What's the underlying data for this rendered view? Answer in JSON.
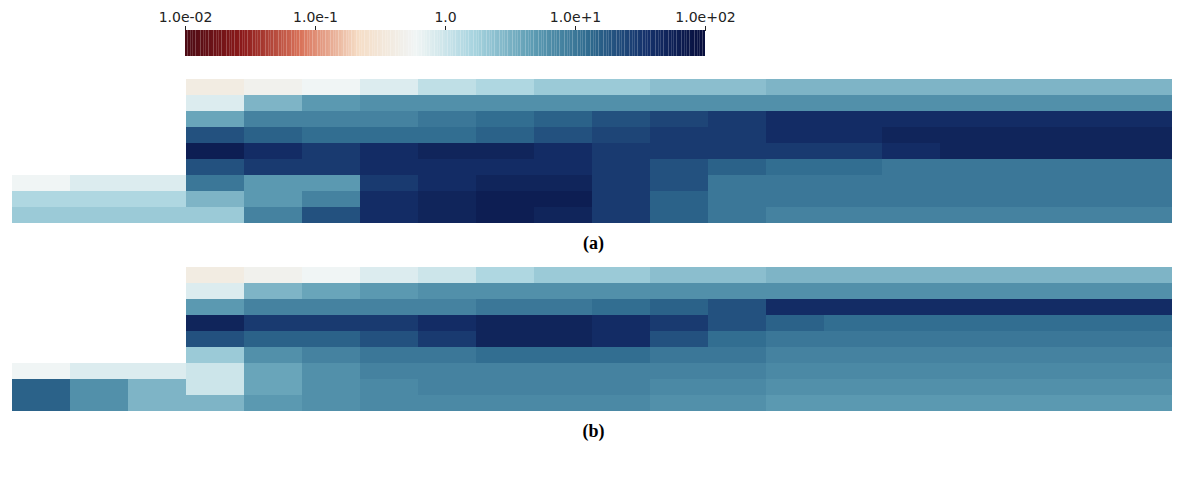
{
  "chart_data": {
    "type": "heatmap",
    "log": true,
    "colorbar": {
      "range": [
        0.01,
        100
      ],
      "ticks": [
        {
          "value": 0.01,
          "label": "1.0e-02"
        },
        {
          "value": 0.1,
          "label": "1.0e-1"
        },
        {
          "value": 1,
          "label": "1.0"
        },
        {
          "value": 10,
          "label": "1.0e+1"
        },
        {
          "value": 100,
          "label": "1.0e+02"
        }
      ]
    },
    "panels": [
      {
        "label": "(a)",
        "cells": [
          [
            null,
            null,
            null,
            0.4,
            0.5,
            0.6,
            0.8,
            1.2,
            1.5,
            2,
            2,
            2.5,
            2.5,
            3,
            3,
            3,
            3,
            3,
            3,
            3
          ],
          [
            null,
            null,
            null,
            0.8,
            3,
            5,
            6,
            6,
            6,
            6,
            6,
            6,
            6,
            6,
            6,
            6,
            6,
            6,
            6,
            6
          ],
          [
            null,
            null,
            null,
            4,
            8,
            8,
            8,
            10,
            12,
            15,
            20,
            25,
            30,
            40,
            40,
            40,
            40,
            40,
            40,
            40
          ],
          [
            null,
            null,
            null,
            20,
            15,
            12,
            12,
            12,
            15,
            20,
            25,
            30,
            30,
            40,
            40,
            50,
            50,
            50,
            50,
            50
          ],
          [
            null,
            null,
            null,
            60,
            40,
            30,
            40,
            50,
            50,
            40,
            30,
            30,
            30,
            30,
            30,
            40,
            50,
            50,
            50,
            50
          ],
          [
            null,
            null,
            null,
            20,
            30,
            30,
            40,
            40,
            40,
            40,
            30,
            20,
            15,
            12,
            12,
            10,
            10,
            10,
            10,
            10
          ],
          [
            0.6,
            0.8,
            0.8,
            10,
            5,
            5,
            30,
            40,
            50,
            50,
            30,
            20,
            10,
            10,
            10,
            10,
            10,
            10,
            10,
            10
          ],
          [
            1.5,
            1.5,
            1.5,
            3,
            5,
            8,
            40,
            50,
            60,
            60,
            30,
            15,
            10,
            10,
            10,
            10,
            10,
            10,
            10,
            10
          ],
          [
            2,
            2,
            2,
            2,
            8,
            20,
            40,
            50,
            60,
            50,
            30,
            15,
            10,
            8,
            8,
            8,
            8,
            8,
            8,
            8
          ]
        ]
      },
      {
        "label": "(b)",
        "cells": [
          [
            null,
            null,
            null,
            0.4,
            0.5,
            0.6,
            0.8,
            1,
            1.5,
            2,
            2,
            2.5,
            2.5,
            3,
            3,
            3,
            3,
            3,
            3,
            3
          ],
          [
            null,
            null,
            null,
            0.8,
            3,
            4,
            5,
            6,
            6,
            6,
            6,
            6,
            6,
            6,
            6,
            6,
            6,
            6,
            6,
            6
          ],
          [
            null,
            null,
            null,
            5,
            8,
            8,
            8,
            8,
            10,
            10,
            12,
            15,
            20,
            40,
            40,
            40,
            40,
            40,
            40,
            40
          ],
          [
            null,
            null,
            null,
            50,
            30,
            30,
            30,
            40,
            50,
            50,
            40,
            30,
            20,
            15,
            12,
            12,
            12,
            12,
            12,
            12
          ],
          [
            null,
            null,
            null,
            20,
            15,
            15,
            20,
            30,
            50,
            50,
            40,
            20,
            12,
            10,
            10,
            10,
            10,
            10,
            10,
            10
          ],
          [
            null,
            null,
            null,
            2,
            6,
            8,
            10,
            10,
            12,
            12,
            12,
            10,
            10,
            8,
            8,
            8,
            8,
            8,
            8,
            8
          ],
          [
            0.6,
            0.8,
            0.8,
            1,
            4,
            6,
            8,
            8,
            8,
            8,
            8,
            8,
            8,
            7,
            7,
            7,
            7,
            7,
            7,
            7
          ],
          [
            15,
            6,
            3,
            1,
            4,
            6,
            7,
            8,
            8,
            8,
            8,
            7,
            7,
            6,
            6,
            6,
            6,
            6,
            6,
            6
          ],
          [
            15,
            6,
            3,
            3,
            5,
            6,
            7,
            7,
            7,
            7,
            7,
            6,
            6,
            5,
            5,
            5,
            5,
            5,
            5,
            5
          ]
        ]
      }
    ]
  }
}
